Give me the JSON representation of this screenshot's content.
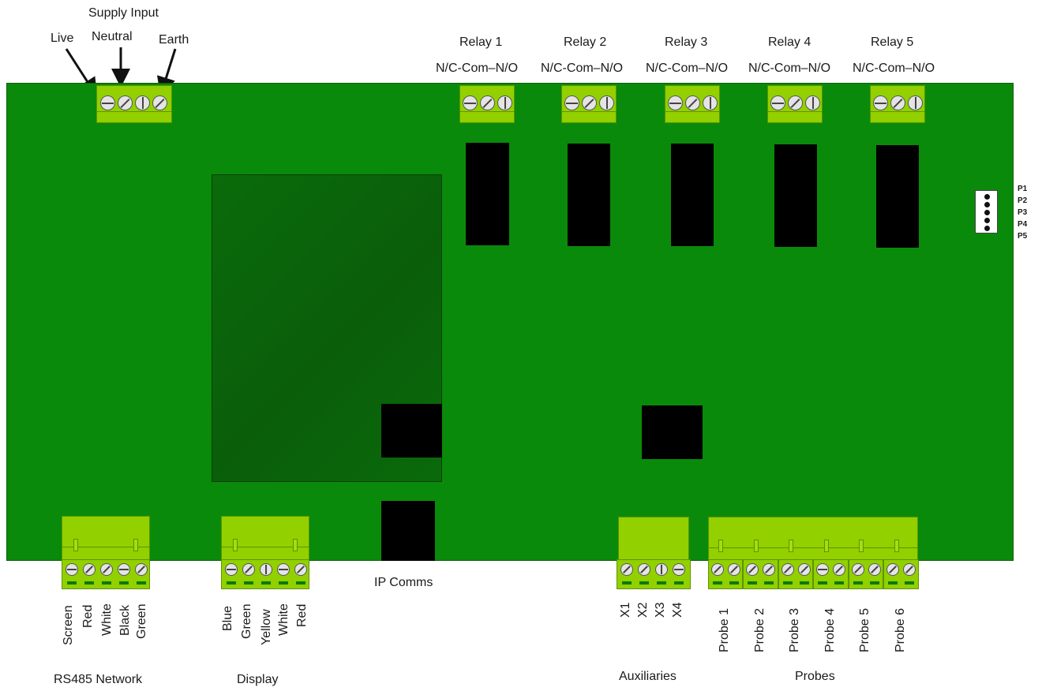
{
  "supply": {
    "title": "Supply Input",
    "live": "Live",
    "neutral": "Neutral",
    "earth": "Earth"
  },
  "relays": [
    {
      "name": "Relay 1",
      "pins": "N/C-Com–N/O"
    },
    {
      "name": "Relay 2",
      "pins": "N/C-Com–N/O"
    },
    {
      "name": "Relay 3",
      "pins": "N/C-Com–N/O"
    },
    {
      "name": "Relay 4",
      "pins": "N/C-Com–N/O"
    },
    {
      "name": "Relay 5",
      "pins": "N/C-Com–N/O"
    }
  ],
  "header_pins": [
    "P1",
    "P2",
    "P3",
    "P4",
    "P5"
  ],
  "rs485": {
    "title": "RS485 Network",
    "wires": [
      "Screen",
      "Red",
      "White",
      "Black",
      "Green"
    ]
  },
  "display": {
    "title": "Display",
    "wires": [
      "Blue",
      "Green",
      "Yellow",
      "White",
      "Red"
    ]
  },
  "ip_comms": "IP Comms",
  "auxiliaries": {
    "title": "Auxiliaries",
    "terminals": [
      "X1",
      "X2",
      "X3",
      "X4"
    ]
  },
  "probes": {
    "title": "Probes",
    "terminals": [
      "Probe 1",
      "Probe 2",
      "Probe 3",
      "Probe 4",
      "Probe 5",
      "Probe 6"
    ]
  },
  "colors": {
    "board": "#0a8a0a",
    "module": "#0a5e0a",
    "terminal": "#92d000",
    "component": "#000000"
  }
}
